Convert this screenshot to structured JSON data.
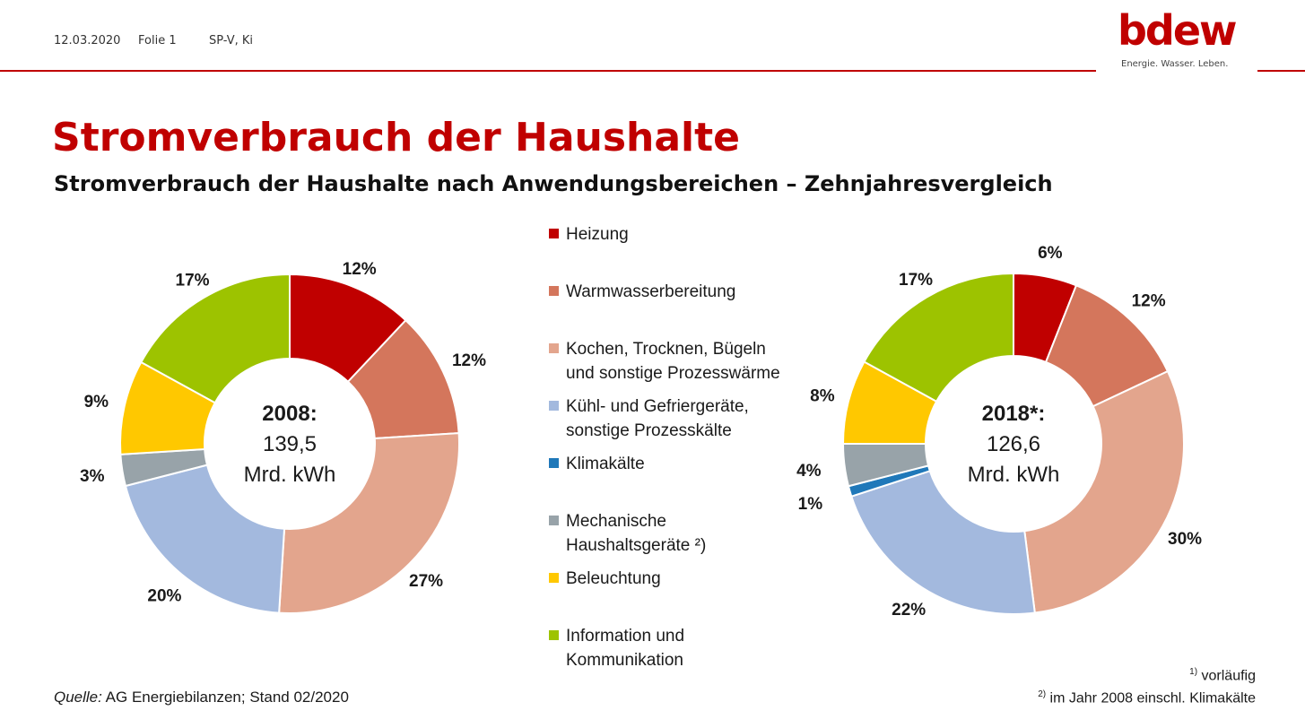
{
  "header": {
    "date": "12.03.2020",
    "slide": "Folie 1",
    "author": "SP-V, Ki",
    "logo_text": "bdew",
    "logo_tagline": "Energie. Wasser. Leben.",
    "accent_color": "#c00000"
  },
  "title": "Stromverbrauch der Haushalte",
  "subtitle": "Stromverbrauch der Haushalte nach Anwendungsbereichen – Zehnjahresvergleich",
  "legend": [
    {
      "label": "Heizung",
      "color": "#c00000"
    },
    {
      "label": "Warmwasserbereitung",
      "color": "#d4765c"
    },
    {
      "label": "Kochen, Trocknen, Bügeln\nund sonstige Prozesswärme",
      "color": "#e3a58d"
    },
    {
      "label": "Kühl- und Gefriergeräte,\nsonstige Prozesskälte",
      "color": "#a3b9de"
    },
    {
      "label": "Klimakälte",
      "color": "#1f78b9"
    },
    {
      "label": "Mechanische\nHaushaltsgeräte ²)",
      "color": "#98a3a9"
    },
    {
      "label": "Beleuchtung",
      "color": "#ffc800"
    },
    {
      "label": "Information und\nKommunikation",
      "color": "#9dc300"
    }
  ],
  "chart_data": [
    {
      "type": "pie",
      "donut": true,
      "center_year": "2008:",
      "center_value": "139,5",
      "center_unit": "Mrd. kWh",
      "categories": [
        "Heizung",
        "Warmwasserbereitung",
        "Kochen, Trocknen, Bügeln und sonstige Prozesswärme",
        "Kühl- und Gefriergeräte, sonstige Prozesskälte",
        "Mechanische Haushaltsgeräte",
        "Beleuchtung",
        "Information und Kommunikation"
      ],
      "values": [
        12,
        12,
        27,
        20,
        3,
        9,
        17
      ],
      "labels": [
        "12%",
        "12%",
        "27%",
        "20%",
        "3%",
        "9%",
        "17%"
      ],
      "colors": [
        "#c00000",
        "#d4765c",
        "#e3a58d",
        "#a3b9de",
        "#98a3a9",
        "#ffc800",
        "#9dc300"
      ]
    },
    {
      "type": "pie",
      "donut": true,
      "center_year": "2018*:",
      "center_value": "126,6",
      "center_unit": "Mrd. kWh",
      "categories": [
        "Heizung",
        "Warmwasserbereitung",
        "Kochen, Trocknen, Bügeln und sonstige Prozesswärme",
        "Kühl- und Gefriergeräte, sonstige Prozesskälte",
        "Klimakälte",
        "Mechanische Haushaltsgeräte",
        "Beleuchtung",
        "Information und Kommunikation"
      ],
      "values": [
        6,
        12,
        30,
        22,
        1,
        4,
        8,
        17
      ],
      "labels": [
        "6%",
        "12%",
        "30%",
        "22%",
        "1%",
        "4%",
        "8%",
        "17%"
      ],
      "colors": [
        "#c00000",
        "#d4765c",
        "#e3a58d",
        "#a3b9de",
        "#1f78b9",
        "#98a3a9",
        "#ffc800",
        "#9dc300"
      ]
    }
  ],
  "source": {
    "prefix": "Quelle:",
    "text": " AG Energiebilanzen; Stand 02/2020"
  },
  "footnotes": [
    {
      "mark": "1)",
      "text": " vorläufig"
    },
    {
      "mark": "2)",
      "text": " im Jahr 2008 einschl. Klimakälte"
    }
  ]
}
